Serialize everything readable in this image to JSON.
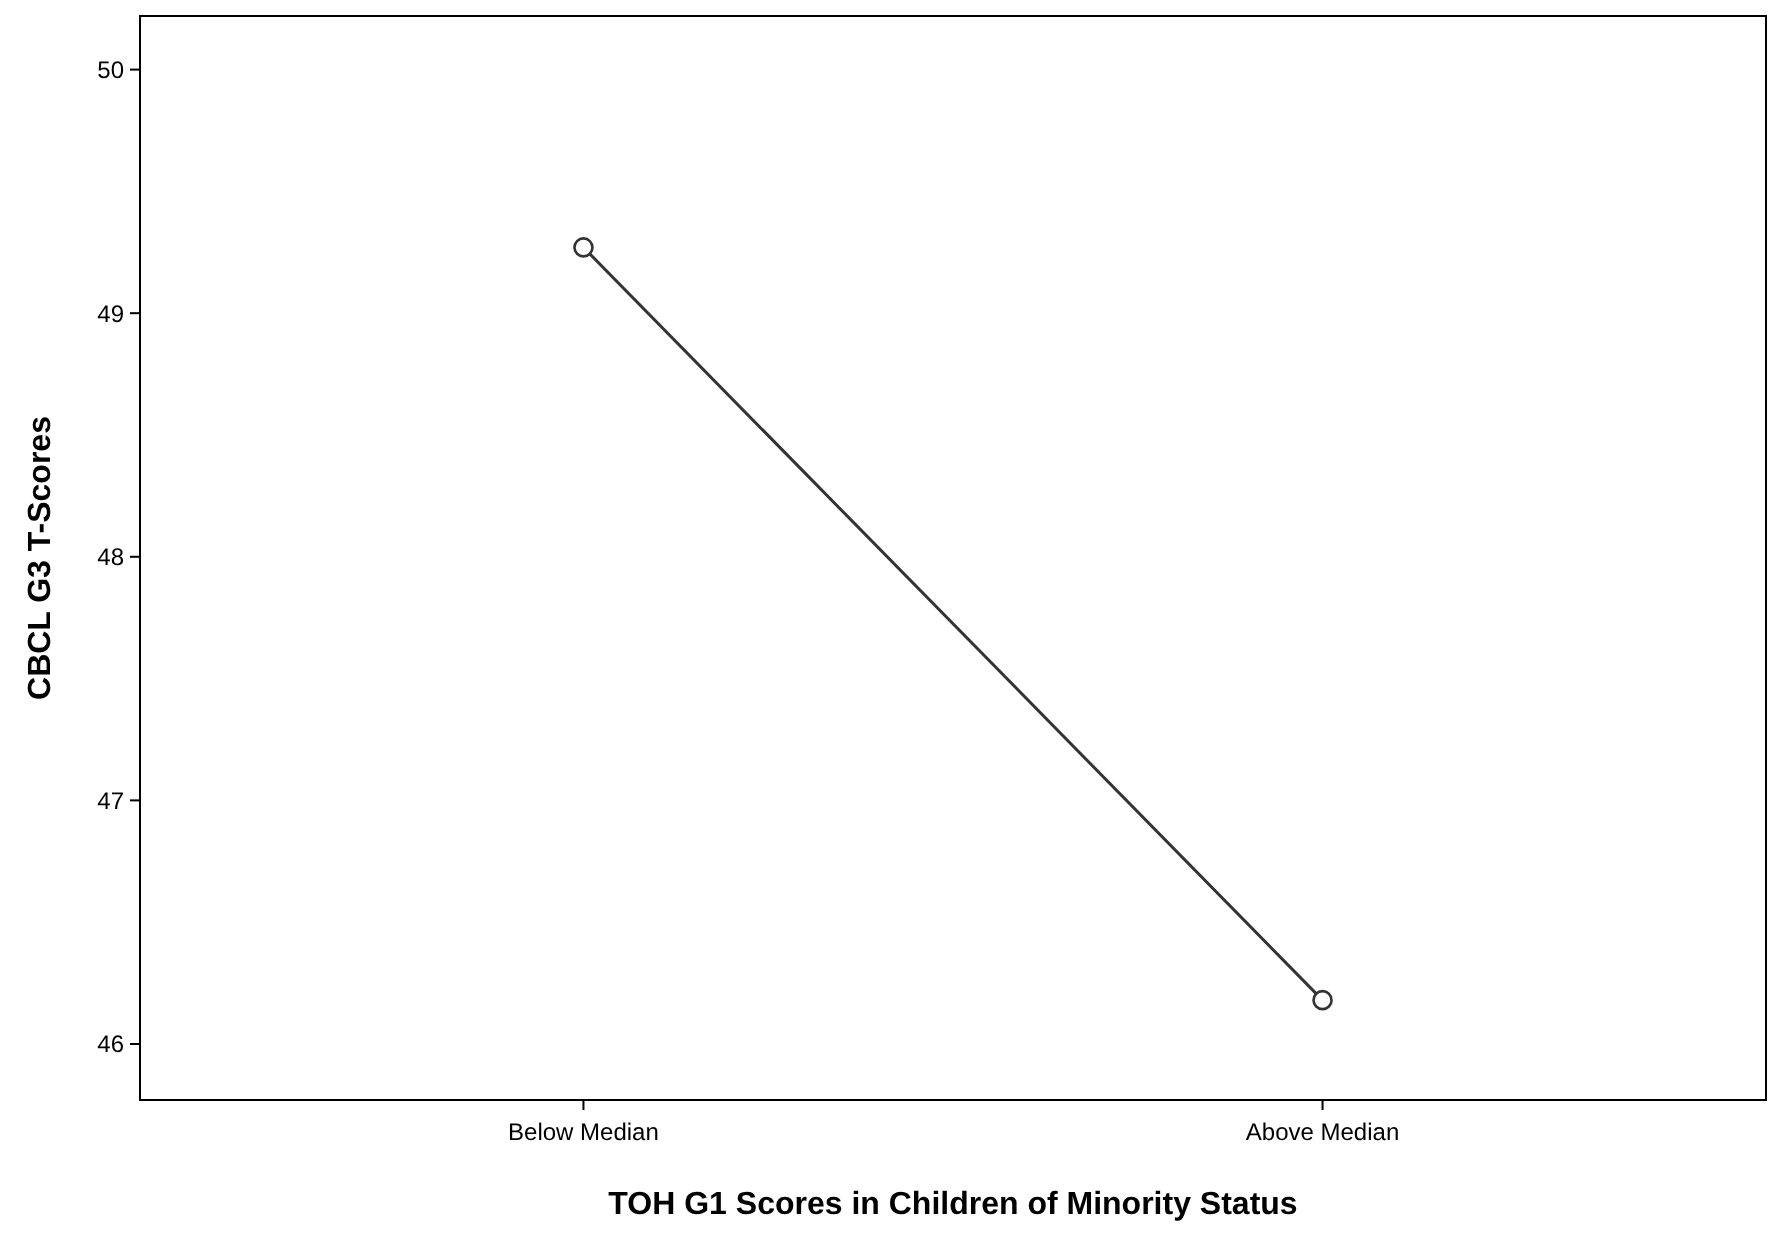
{
  "chart_data": {
    "type": "line",
    "xlabel": "TOH G1 Scores in Children of Minority Status",
    "ylabel": "CBCL G3 T-Scores",
    "categories": [
      "Below Median",
      "Above Median"
    ],
    "series": [
      {
        "color": "#333333",
        "values": [
          49.27,
          46.18
        ]
      }
    ],
    "ylim": [
      45.77,
      50.22
    ],
    "yticks": [
      46,
      47,
      48,
      49,
      50
    ],
    "marker": "circle"
  }
}
